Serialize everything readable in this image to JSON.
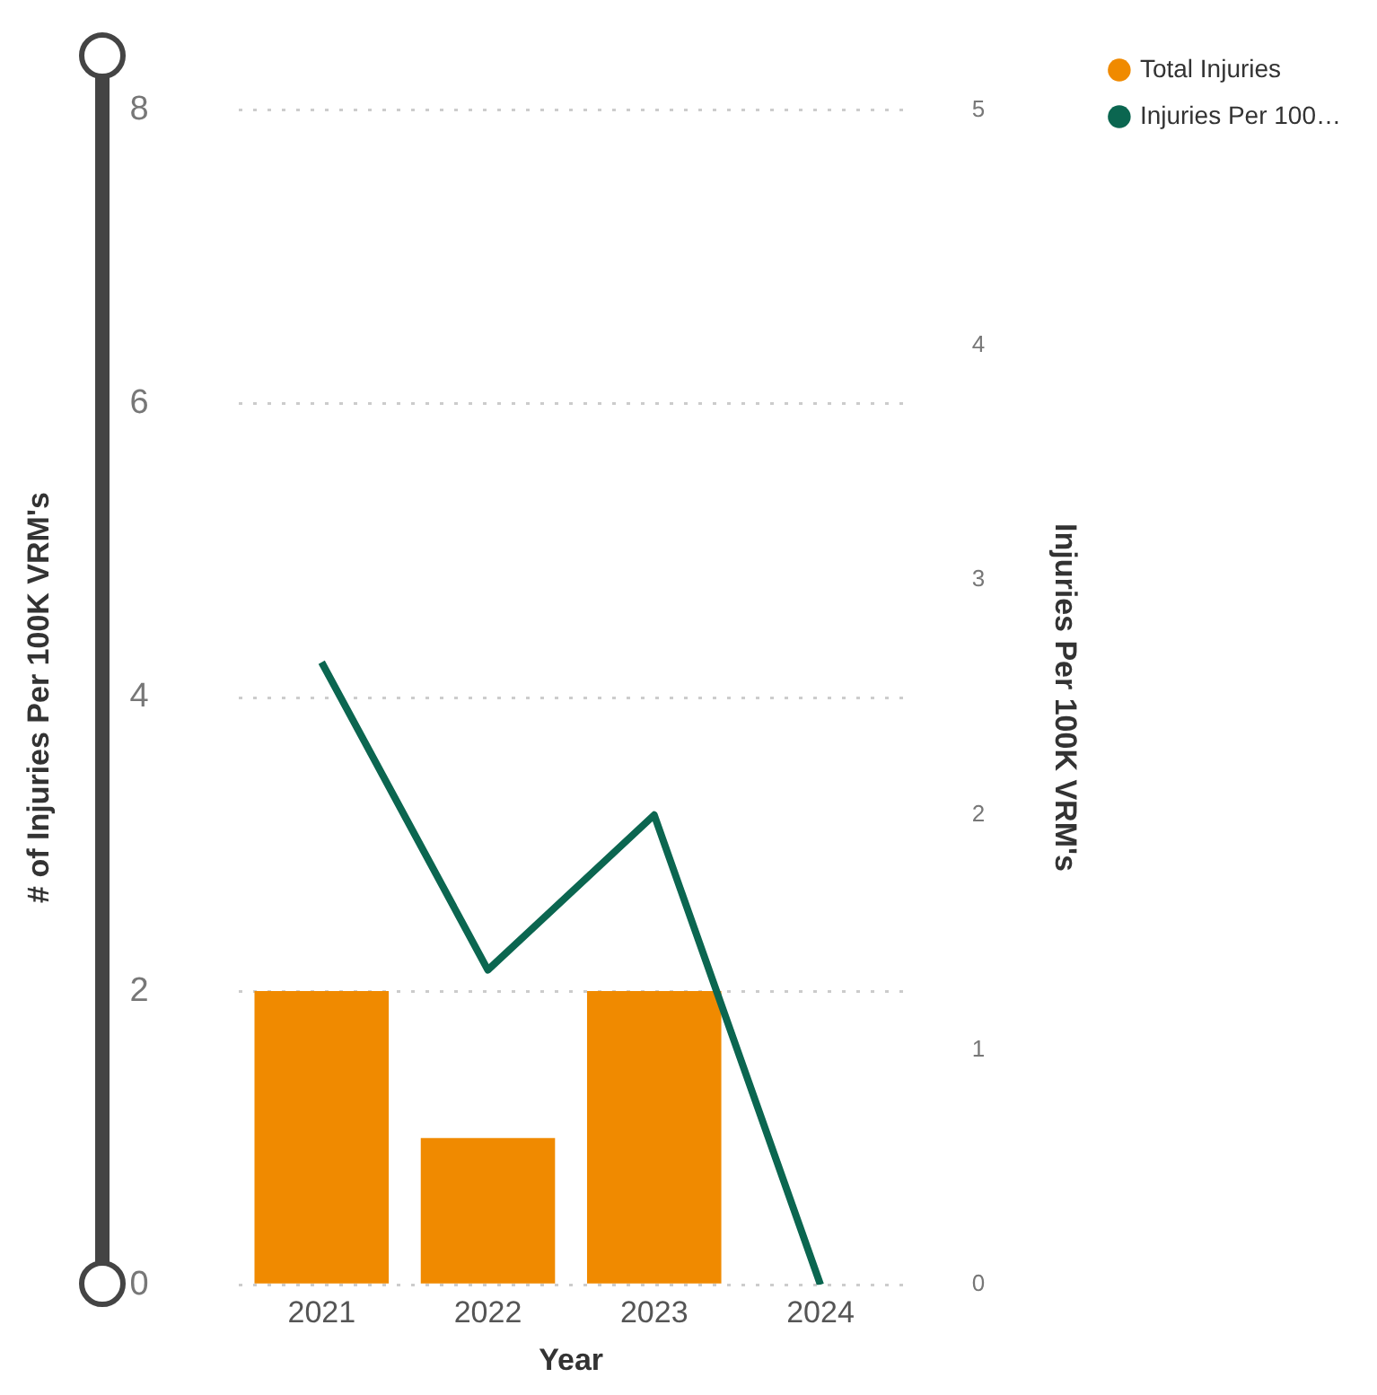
{
  "chart_data": {
    "type": "bar",
    "categories": [
      "2021",
      "2022",
      "2023",
      "2024"
    ],
    "xlabel": "Year",
    "ylabel": "# of Injuries Per 100K VRM's",
    "y2label": "Injuries Per 100K VRM's",
    "series": [
      {
        "name": "Total Injuries",
        "color": "#f08a00",
        "values": [
          2,
          1,
          2,
          null
        ]
      },
      {
        "name": "Injuries Per 100…",
        "type": "line",
        "axis": "y2",
        "color": "#0b6650",
        "values": [
          2.65,
          1.34,
          2.0,
          0
        ]
      }
    ],
    "ylim": [
      0,
      8
    ],
    "yticks": [
      0,
      2,
      4,
      6,
      8
    ],
    "y2lim": [
      0,
      5
    ],
    "y2ticks": [
      0,
      1,
      2,
      3,
      4,
      5
    ],
    "grid": "y",
    "legend": "top right",
    "marker": "none"
  }
}
